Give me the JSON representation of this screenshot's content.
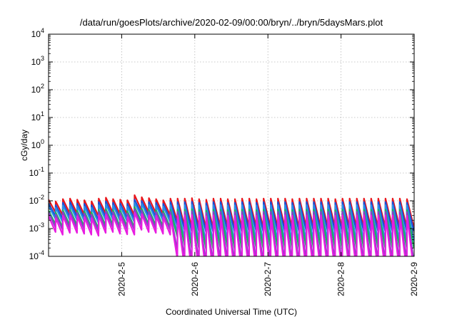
{
  "chart_data": {
    "type": "line",
    "title": "/data/run/goesPlots/archive/2020-02-09/00:00/bryn/../bryn/5daysMars.plot",
    "xlabel": "Coordinated Universal Time (UTC)",
    "ylabel": "cGy/day",
    "y_scale": "log",
    "ylim": [
      0.0001,
      10000
    ],
    "y_ticks": [
      {
        "value": 0.0001,
        "base": "10",
        "exp": "-4"
      },
      {
        "value": 0.001,
        "base": "10",
        "exp": "-3"
      },
      {
        "value": 0.01,
        "base": "10",
        "exp": "-2"
      },
      {
        "value": 0.1,
        "base": "10",
        "exp": "-1"
      },
      {
        "value": 1,
        "base": "10",
        "exp": "0"
      },
      {
        "value": 10,
        "base": "10",
        "exp": "1"
      },
      {
        "value": 100,
        "base": "10",
        "exp": "2"
      },
      {
        "value": 1000,
        "base": "10",
        "exp": "3"
      },
      {
        "value": 10000,
        "base": "10",
        "exp": "4"
      }
    ],
    "xlim": [
      "2020-02-04T00:00",
      "2020-02-09T00:00"
    ],
    "x_ticks": [
      {
        "value": "2020-02-05T00:00",
        "label": "2020-2-5"
      },
      {
        "value": "2020-02-06T00:00",
        "label": "2020-2-6"
      },
      {
        "value": "2020-02-07T00:00",
        "label": "2020-2-7"
      },
      {
        "value": "2020-02-08T00:00",
        "label": "2020-2-8"
      },
      {
        "value": "2020-02-09T00:00",
        "label": "2020-2-9"
      }
    ],
    "grid": true,
    "legend": "none",
    "series": [
      {
        "color": "#e8151b",
        "peaks": [
          0.011,
          0.0095,
          0.0115,
          0.012,
          0.011,
          0.0105,
          0.0095,
          0.012,
          0.013,
          0.0115,
          0.011,
          0.0105,
          0.016,
          0.0135,
          0.0125,
          0.0115,
          0.0105,
          0.012,
          0.012,
          0.012,
          0.0125,
          0.0115,
          0.011,
          0.012,
          0.012,
          0.0115,
          0.0115,
          0.012,
          0.012,
          0.0115,
          0.012,
          0.012,
          0.012,
          0.012,
          0.0115,
          0.012,
          0.012,
          0.012,
          0.012,
          0.012,
          0.0115,
          0.012,
          0.012,
          0.012,
          0.012,
          0.012,
          0.012,
          0.012,
          0.012,
          0.012,
          0.0115
        ],
        "troughs": [
          0.0038,
          0.003,
          0.0034,
          0.0035,
          0.0032,
          0.003,
          0.0028,
          0.0035,
          0.0037,
          0.0033,
          0.0032,
          0.003,
          0.0045,
          0.0038,
          0.0036,
          0.0033,
          0.003,
          0.0018,
          0.0012,
          0.0011,
          0.0011,
          0.001,
          0.001,
          0.0011,
          0.0011,
          0.001,
          0.001,
          0.0011,
          0.0011,
          0.001,
          0.0011,
          0.0011,
          0.0011,
          0.0011,
          0.001,
          0.0011,
          0.0011,
          0.0011,
          0.0011,
          0.0011,
          0.001,
          0.0011,
          0.0011,
          0.0011,
          0.0011,
          0.0011,
          0.0011,
          0.0011,
          0.0011,
          0.0011,
          0.0011
        ]
      },
      {
        "color": "#1a4fd6",
        "peaks": [
          0.008,
          0.007,
          0.0085,
          0.009,
          0.008,
          0.0078,
          0.007,
          0.009,
          0.0095,
          0.0085,
          0.008,
          0.0078,
          0.011,
          0.0098,
          0.009,
          0.0085,
          0.0078,
          0.009,
          0.009,
          0.009,
          0.0092,
          0.0085,
          0.0082,
          0.009,
          0.009,
          0.0085,
          0.0085,
          0.009,
          0.009,
          0.0085,
          0.009,
          0.009,
          0.009,
          0.009,
          0.0085,
          0.009,
          0.009,
          0.009,
          0.009,
          0.009,
          0.0085,
          0.009,
          0.009,
          0.009,
          0.009,
          0.009,
          0.009,
          0.009,
          0.009,
          0.009,
          0.0085
        ],
        "troughs": [
          0.0028,
          0.0022,
          0.0025,
          0.0026,
          0.0024,
          0.0022,
          0.002,
          0.0026,
          0.0027,
          0.0024,
          0.0023,
          0.0022,
          0.0033,
          0.0028,
          0.0026,
          0.0024,
          0.0022,
          0.0013,
          0.0009,
          0.0008,
          0.0008,
          0.00075,
          0.00075,
          0.0008,
          0.0008,
          0.00075,
          0.00075,
          0.0008,
          0.0008,
          0.00075,
          0.0008,
          0.0008,
          0.0008,
          0.0008,
          0.00075,
          0.0008,
          0.0008,
          0.0008,
          0.0008,
          0.0008,
          0.00075,
          0.0008,
          0.0008,
          0.0008,
          0.0008,
          0.0008,
          0.0008,
          0.0008,
          0.0008,
          0.0008,
          0.0008
        ]
      },
      {
        "color": "#2a8fe8",
        "peaks": [
          0.0065,
          0.0056,
          0.0068,
          0.007,
          0.0065,
          0.0062,
          0.0056,
          0.007,
          0.0075,
          0.0068,
          0.0065,
          0.0062,
          0.0085,
          0.0078,
          0.0072,
          0.0068,
          0.0062,
          0.007,
          0.007,
          0.007,
          0.0072,
          0.0068,
          0.0065,
          0.007,
          0.007,
          0.0068,
          0.0068,
          0.007,
          0.007,
          0.0068,
          0.007,
          0.007,
          0.007,
          0.007,
          0.0068,
          0.007,
          0.007,
          0.007,
          0.007,
          0.007,
          0.0068,
          0.007,
          0.007,
          0.007,
          0.007,
          0.007,
          0.007,
          0.007,
          0.007,
          0.007,
          0.0068
        ],
        "troughs": [
          0.0022,
          0.0017,
          0.002,
          0.002,
          0.0019,
          0.0017,
          0.0016,
          0.002,
          0.0021,
          0.0019,
          0.0018,
          0.0017,
          0.0026,
          0.0022,
          0.002,
          0.0019,
          0.0017,
          0.0007,
          0.0004,
          0.00035,
          0.00035,
          0.0003,
          0.0003,
          0.00035,
          0.00035,
          0.0003,
          0.0003,
          0.00035,
          0.00035,
          0.0003,
          0.00035,
          0.00035,
          0.00035,
          0.00035,
          0.0003,
          0.00035,
          0.00035,
          0.00035,
          0.00035,
          0.00035,
          0.0003,
          0.00035,
          0.00035,
          0.00035,
          0.00035,
          0.00035,
          0.00035,
          0.00035,
          0.00035,
          0.00035,
          0.00035
        ]
      },
      {
        "color": "#18b85a",
        "peaks": [
          0.0045,
          0.0038,
          0.0046,
          0.0048,
          0.0044,
          0.0042,
          0.0038,
          0.0048,
          0.005,
          0.0046,
          0.0044,
          0.0042,
          0.006,
          0.0052,
          0.0048,
          0.0046,
          0.0042,
          0.0048,
          0.0048,
          0.0048,
          0.005,
          0.0046,
          0.0044,
          0.0048,
          0.0048,
          0.0046,
          0.0046,
          0.0048,
          0.0048,
          0.0046,
          0.0048,
          0.0048,
          0.0048,
          0.0048,
          0.0046,
          0.0048,
          0.0048,
          0.0048,
          0.0048,
          0.0048,
          0.0046,
          0.0048,
          0.0048,
          0.0048,
          0.0048,
          0.0048,
          0.0048,
          0.0048,
          0.0048,
          0.0048,
          0.0046
        ],
        "troughs": [
          0.0014,
          0.0011,
          0.0013,
          0.0013,
          0.0012,
          0.0011,
          0.001,
          0.0013,
          0.0014,
          0.0012,
          0.0012,
          0.0011,
          0.0017,
          0.0014,
          0.0013,
          0.0012,
          0.0011,
          0.0005,
          0.00025,
          0.0002,
          0.0002,
          0.00018,
          0.00018,
          0.0002,
          0.0002,
          0.00018,
          0.00018,
          0.0002,
          0.0002,
          0.00018,
          0.0002,
          0.0002,
          0.0002,
          0.0002,
          0.00018,
          0.0002,
          0.0002,
          0.0002,
          0.0002,
          0.0002,
          0.00018,
          0.0002,
          0.0002,
          0.0002,
          0.0002,
          0.0002,
          0.0002,
          0.0002,
          0.0002,
          0.0002,
          0.0002
        ]
      },
      {
        "color": "#8a3fc8",
        "peaks": [
          0.0038,
          0.0032,
          0.0039,
          0.004,
          0.0037,
          0.0035,
          0.0032,
          0.004,
          0.0042,
          0.0039,
          0.0037,
          0.0035,
          0.005,
          0.0044,
          0.004,
          0.0039,
          0.0035,
          0.004,
          0.004,
          0.004,
          0.0042,
          0.0039,
          0.0037,
          0.004,
          0.004,
          0.0039,
          0.0039,
          0.004,
          0.004,
          0.0039,
          0.004,
          0.004,
          0.004,
          0.004,
          0.0039,
          0.004,
          0.004,
          0.004,
          0.004,
          0.004,
          0.0039,
          0.004,
          0.004,
          0.004,
          0.004,
          0.004,
          0.004,
          0.004,
          0.004,
          0.004,
          0.0039
        ],
        "troughs": [
          0.0011,
          0.0009,
          0.001,
          0.001,
          0.00095,
          0.0009,
          0.0008,
          0.001,
          0.0011,
          0.00095,
          0.00092,
          0.0009,
          0.0013,
          0.0011,
          0.001,
          0.00095,
          0.0009,
          0.00015,
          8e-05,
          6e-05,
          6e-05,
          5e-05,
          5e-05,
          6e-05,
          6e-05,
          5e-05,
          5e-05,
          6e-05,
          6e-05,
          5e-05,
          6e-05,
          6e-05,
          6e-05,
          6e-05,
          5e-05,
          6e-05,
          6e-05,
          6e-05,
          6e-05,
          6e-05,
          5e-05,
          6e-05,
          6e-05,
          6e-05,
          6e-05,
          6e-05,
          6e-05,
          6e-05,
          6e-05,
          6e-05,
          6e-05
        ]
      },
      {
        "color": "#e81ce0",
        "peaks": [
          0.0028,
          0.0024,
          0.0029,
          0.003,
          0.0028,
          0.0026,
          0.0024,
          0.003,
          0.0032,
          0.0029,
          0.0028,
          0.0026,
          0.0038,
          0.0033,
          0.003,
          0.0029,
          0.0026,
          0.003,
          0.003,
          0.003,
          0.0031,
          0.0029,
          0.0028,
          0.003,
          0.003,
          0.0029,
          0.0029,
          0.003,
          0.003,
          0.0029,
          0.003,
          0.003,
          0.003,
          0.003,
          0.0029,
          0.003,
          0.003,
          0.003,
          0.003,
          0.003,
          0.0029,
          0.003,
          0.003,
          0.003,
          0.003,
          0.003,
          0.003,
          0.003,
          0.003,
          0.003,
          0.0029
        ],
        "troughs": [
          0.00075,
          0.0006,
          0.0007,
          0.0007,
          0.00065,
          0.0006,
          0.00055,
          0.0007,
          0.00075,
          0.00065,
          0.00062,
          0.0006,
          0.0009,
          0.00075,
          0.0007,
          0.00065,
          0.0006,
          8e-05,
          4e-05,
          3e-05,
          3e-05,
          2.5e-05,
          2.5e-05,
          3e-05,
          3e-05,
          2.5e-05,
          2.5e-05,
          3e-05,
          3e-05,
          2.5e-05,
          3e-05,
          3e-05,
          3e-05,
          3e-05,
          2.5e-05,
          3e-05,
          3e-05,
          3e-05,
          3e-05,
          3e-05,
          2.5e-05,
          3e-05,
          3e-05,
          3e-05,
          3e-05,
          3e-05,
          3e-05,
          3e-05,
          3e-05,
          3e-05,
          3e-05
        ]
      }
    ]
  }
}
